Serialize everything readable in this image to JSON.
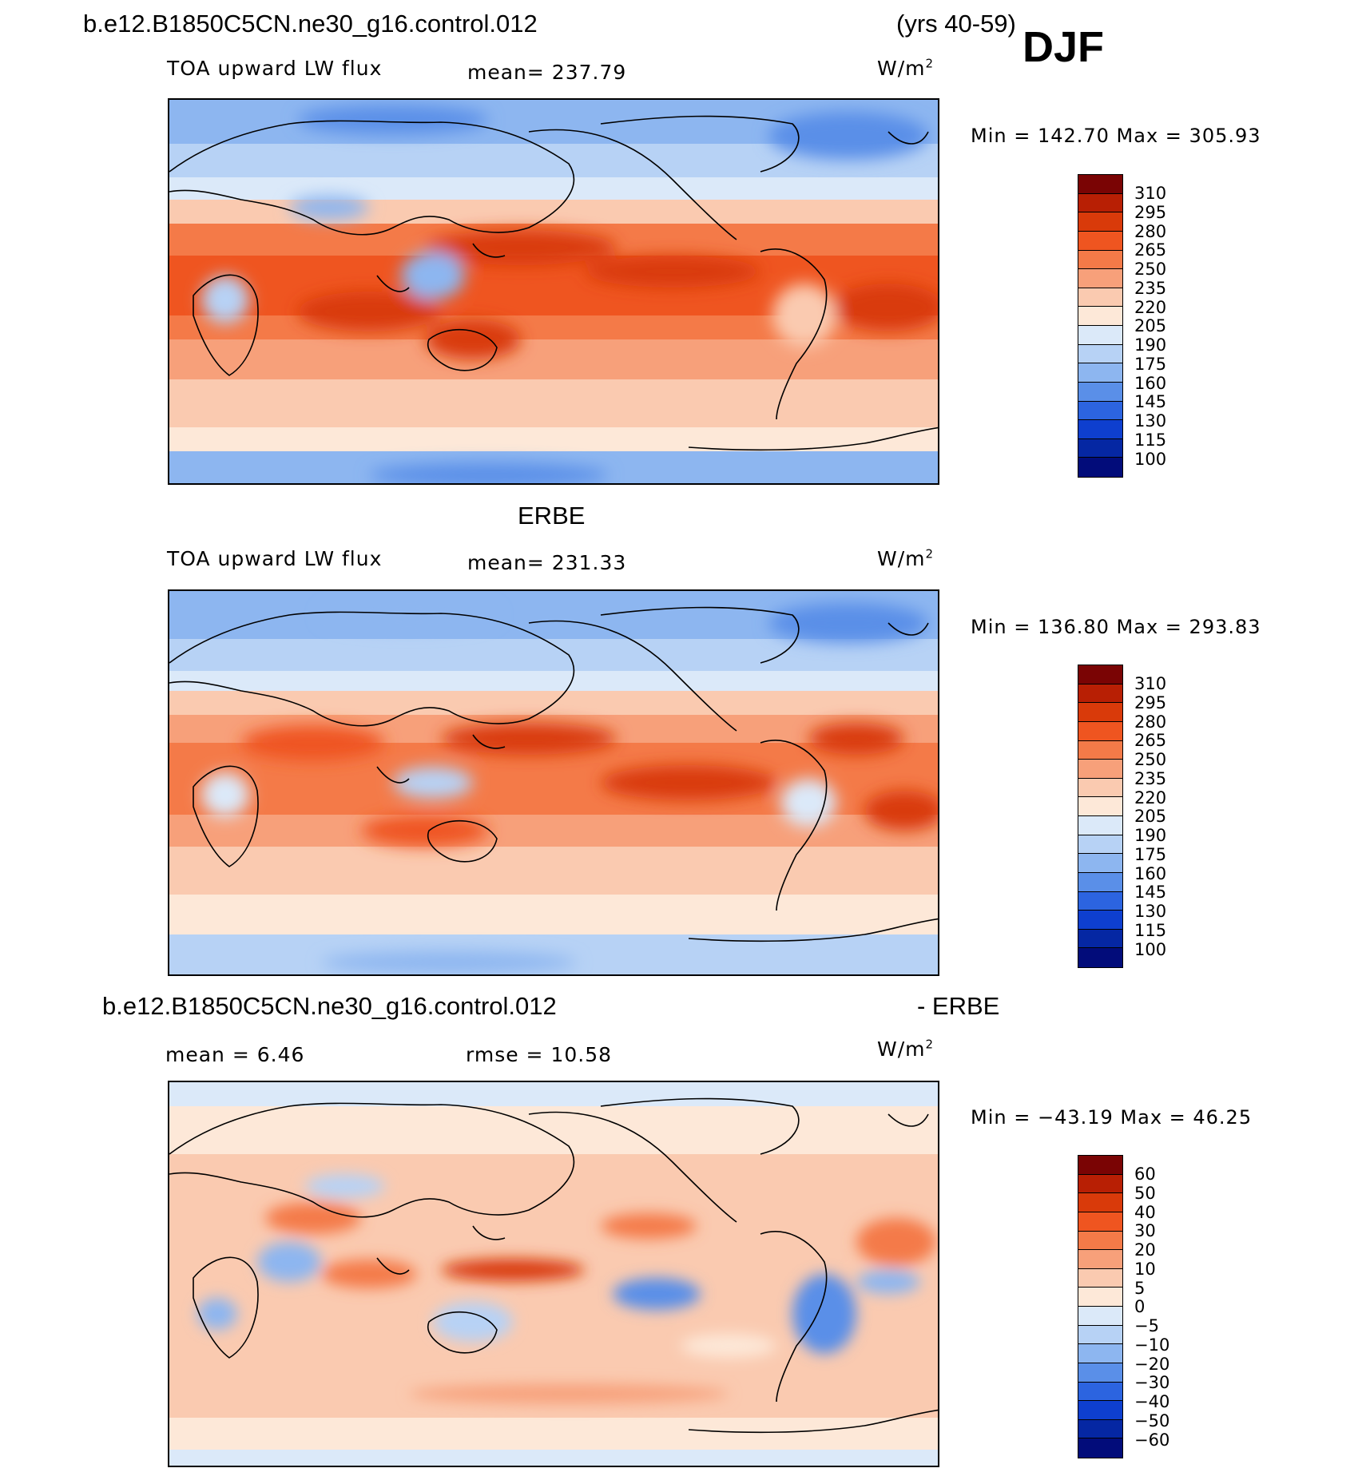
{
  "header": {
    "case_name": "b.e12.B1850C5CN.ne30_g16.control.012",
    "years": "(yrs 40-59)",
    "season": "DJF"
  },
  "panels": [
    {
      "title": "",
      "variable": "TOA upward LW flux",
      "mean_text": "mean= 237.79",
      "units": "W/m",
      "units_sup": "2",
      "minmax": "Min  =  142.70  Max  =  305.93",
      "colorbar_labels": [
        "310",
        "295",
        "280",
        "265",
        "250",
        "235",
        "220",
        "205",
        "190",
        "175",
        "160",
        "145",
        "130",
        "115",
        "100"
      ]
    },
    {
      "title": "ERBE",
      "variable": "TOA upward LW flux",
      "mean_text": "mean= 231.33",
      "units": "W/m",
      "units_sup": "2",
      "minmax": "Min  =  136.80  Max  =  293.83",
      "colorbar_labels": [
        "310",
        "295",
        "280",
        "265",
        "250",
        "235",
        "220",
        "205",
        "190",
        "175",
        "160",
        "145",
        "130",
        "115",
        "100"
      ]
    },
    {
      "title_left": "b.e12.B1850C5CN.ne30_g16.control.012",
      "title_right": "- ERBE",
      "mean_text": "mean  =     6.46",
      "rmse_text": "rmse  =    10.58",
      "units": "W/m",
      "units_sup": "2",
      "minmax": "Min  =  −43.19  Max  =    46.25",
      "colorbar_labels": [
        "60",
        "50",
        "40",
        "30",
        "20",
        "10",
        "5",
        "0",
        "−5",
        "−10",
        "−20",
        "−30",
        "−40",
        "−50",
        "−60"
      ]
    }
  ],
  "colors": {
    "palette": [
      "#7a0404",
      "#b81f04",
      "#d93a0a",
      "#ef5520",
      "#f47a48",
      "#f7a07a",
      "#facab0",
      "#fde8d8",
      "#dbe9f9",
      "#b7d2f5",
      "#8db6f0",
      "#5a8fe8",
      "#2c64e0",
      "#0e3fcf",
      "#0527a3",
      "#020c7a"
    ]
  }
}
